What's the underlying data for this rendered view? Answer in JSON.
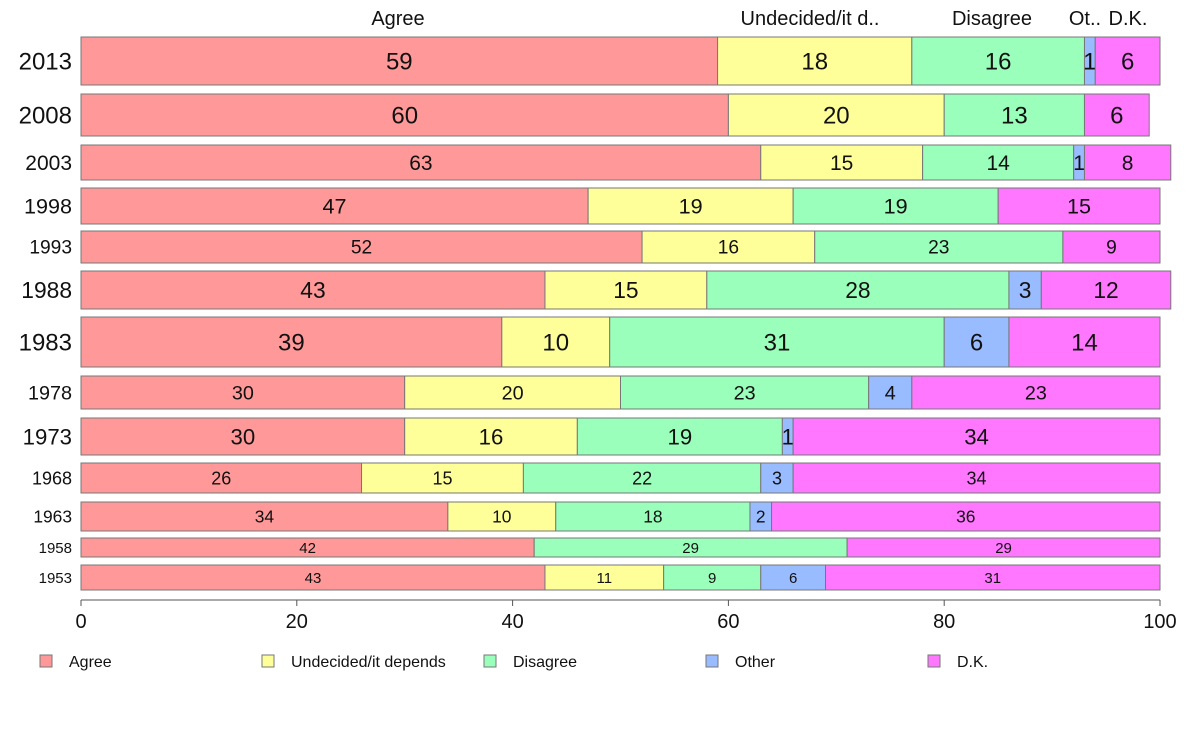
{
  "chart_data": {
    "type": "bar",
    "orientation": "horizontal",
    "stacked": true,
    "categories": [
      "2013",
      "2008",
      "2003",
      "1998",
      "1993",
      "1988",
      "1983",
      "1978",
      "1973",
      "1968",
      "1963",
      "1958",
      "1953"
    ],
    "series": [
      {
        "name": "Agree",
        "color": "#ff9999",
        "values": [
          59,
          60,
          63,
          47,
          52,
          43,
          39,
          30,
          30,
          26,
          34,
          42,
          43
        ]
      },
      {
        "name": "Undecided/it depends",
        "color": "#ffff99",
        "values": [
          18,
          20,
          15,
          19,
          16,
          15,
          10,
          20,
          16,
          15,
          10,
          0,
          11
        ]
      },
      {
        "name": "Disagree",
        "color": "#99ffbb",
        "values": [
          16,
          13,
          14,
          19,
          23,
          28,
          31,
          23,
          19,
          22,
          18,
          29,
          9
        ]
      },
      {
        "name": "Other",
        "color": "#99bbff",
        "values": [
          1,
          0,
          1,
          0,
          0,
          3,
          6,
          4,
          1,
          3,
          2,
          0,
          6
        ]
      },
      {
        "name": "D.K.",
        "color": "#ff77ff",
        "values": [
          6,
          6,
          8,
          15,
          9,
          12,
          14,
          23,
          34,
          34,
          36,
          29,
          31
        ]
      }
    ],
    "top_labels": [
      "Agree",
      "Undecided/it d..",
      "Disagree",
      "Ot..",
      "D.K."
    ],
    "x_ticks": [
      "0",
      "20",
      "40",
      "60",
      "80",
      "100"
    ],
    "xlim": [
      0,
      100
    ],
    "legend_position": "bottom",
    "grid": false
  }
}
